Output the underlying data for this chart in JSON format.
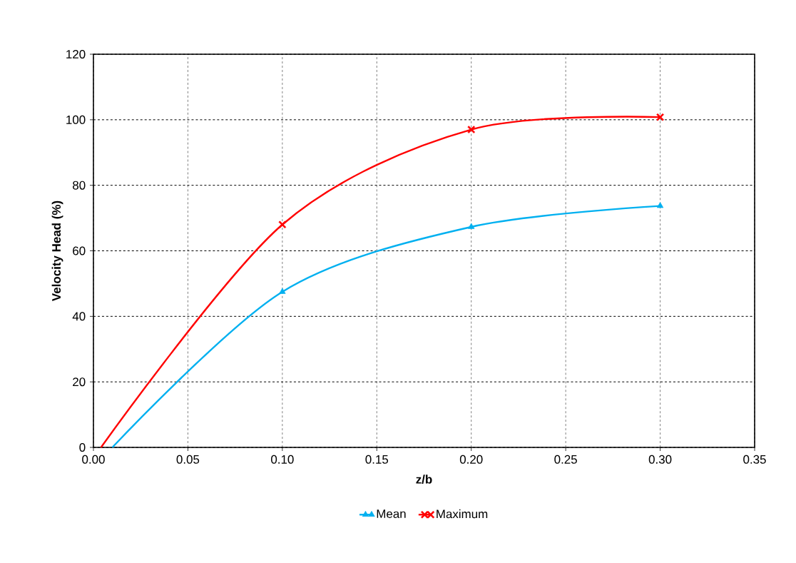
{
  "chart_data": {
    "type": "line",
    "xlabel": "z/b",
    "ylabel": "Velocity Head (%)",
    "xlim": [
      0,
      0.35
    ],
    "xticks": [
      {
        "value": 0,
        "label": "0.00"
      },
      {
        "value": 0.05,
        "label": "0.05"
      },
      {
        "value": 0.1,
        "label": "0.10"
      },
      {
        "value": 0.15,
        "label": "0.15"
      },
      {
        "value": 0.2,
        "label": "0.20"
      },
      {
        "value": 0.25,
        "label": "0.25"
      },
      {
        "value": 0.3,
        "label": "0.30"
      },
      {
        "value": 0.35,
        "label": "0.35"
      }
    ],
    "ylim": [
      0,
      120
    ],
    "yticks": [
      0,
      20,
      40,
      60,
      80,
      100,
      120
    ],
    "grid": true,
    "legend": "bottom",
    "line_style": "solid",
    "series": [
      {
        "name": "Mean",
        "color": "#00b0f0",
        "marker": "triangle",
        "x": [
          0.01,
          0.1,
          0.2,
          0.3
        ],
        "values": [
          0,
          47.5,
          67.3,
          73.7
        ]
      },
      {
        "name": "Maximum",
        "color": "#ff0000",
        "marker": "cross",
        "x": [
          0.004,
          0.1,
          0.2,
          0.3
        ],
        "values": [
          0,
          68,
          97,
          100.8
        ]
      }
    ]
  }
}
